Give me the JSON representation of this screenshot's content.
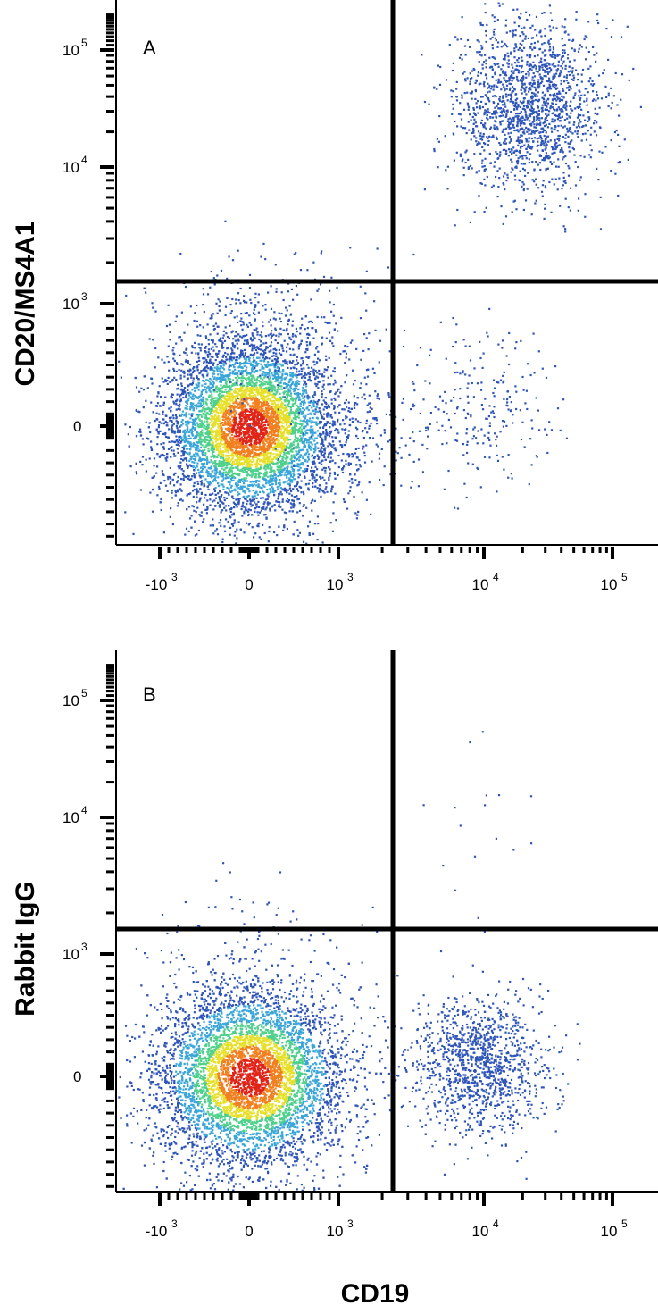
{
  "chart_data": [
    {
      "type": "scatter",
      "panel_label": "A",
      "ylabel": "CD20/MS4A1",
      "xlabel": "",
      "x_scale": "biexponential",
      "y_scale": "biexponential",
      "x_ticks": [
        {
          "value": -1000,
          "base": "-10",
          "exp": "3"
        },
        {
          "value": 0,
          "base": "0",
          "exp": ""
        },
        {
          "value": 1000,
          "base": "10",
          "exp": "3"
        },
        {
          "value": 10000,
          "base": "10",
          "exp": "4"
        },
        {
          "value": 100000,
          "base": "10",
          "exp": "5"
        }
      ],
      "y_ticks": [
        {
          "value": 0,
          "base": "0",
          "exp": ""
        },
        {
          "value": 1000,
          "base": "10",
          "exp": "3"
        },
        {
          "value": 10000,
          "base": "10",
          "exp": "4"
        },
        {
          "value": 100000,
          "base": "10",
          "exp": "5"
        }
      ],
      "quadrant_gate": {
        "x": 2500,
        "y": 1300
      },
      "populations": [
        {
          "name_hidden": "",
          "x_center": 0,
          "y_center": 0,
          "count": 9000,
          "dense": true
        },
        {
          "name_hidden": "",
          "x_center": 25000,
          "y_center": 35000,
          "count": 2200,
          "dense": false
        },
        {
          "name_hidden": "",
          "x_center": 10000,
          "y_center": 100,
          "count": 260,
          "dense": false
        }
      ],
      "color_scale": [
        "#2f55b8",
        "#3aa6d8",
        "#4fd08c",
        "#e6e02a",
        "#f08020",
        "#e02418"
      ]
    },
    {
      "type": "scatter",
      "panel_label": "B",
      "ylabel": "Rabbit IgG",
      "xlabel": "CD19",
      "x_scale": "biexponential",
      "y_scale": "biexponential",
      "x_ticks": [
        {
          "value": -1000,
          "base": "-10",
          "exp": "3"
        },
        {
          "value": 0,
          "base": "0",
          "exp": ""
        },
        {
          "value": 1000,
          "base": "10",
          "exp": "3"
        },
        {
          "value": 10000,
          "base": "10",
          "exp": "4"
        },
        {
          "value": 100000,
          "base": "10",
          "exp": "5"
        }
      ],
      "y_ticks": [
        {
          "value": 0,
          "base": "0",
          "exp": ""
        },
        {
          "value": 1000,
          "base": "10",
          "exp": "3"
        },
        {
          "value": 10000,
          "base": "10",
          "exp": "4"
        },
        {
          "value": 100000,
          "base": "10",
          "exp": "5"
        }
      ],
      "quadrant_gate": {
        "x": 2500,
        "y": 1300
      },
      "populations": [
        {
          "name_hidden": "",
          "x_center": 0,
          "y_center": 0,
          "count": 9000,
          "dense": true
        },
        {
          "name_hidden": "",
          "x_center": 12000,
          "y_center": 0,
          "count": 1400,
          "dense": false
        }
      ],
      "color_scale": [
        "#2f55b8",
        "#3aa6d8",
        "#4fd08c",
        "#e6e02a",
        "#f08020",
        "#e02418"
      ]
    }
  ]
}
